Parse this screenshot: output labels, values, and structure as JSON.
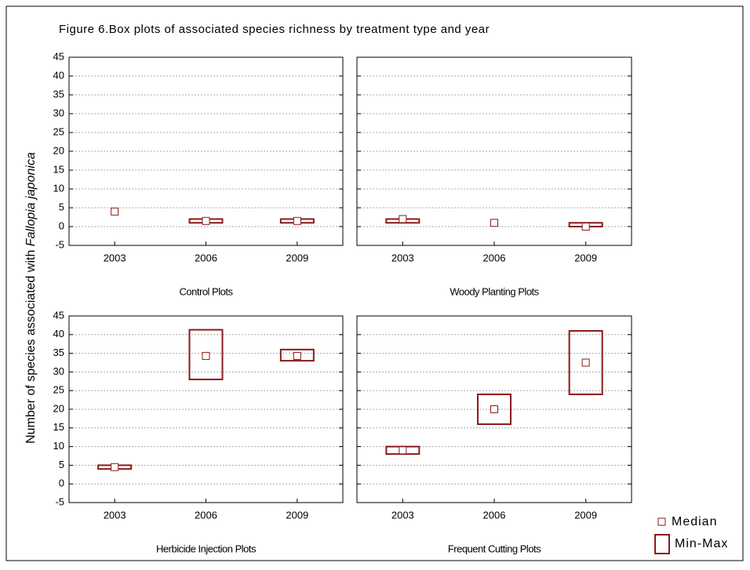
{
  "chart_data": {
    "type": "box",
    "title": "Figure 6.Box plots of associated species richness by treatment type and year",
    "y_label": "Number of species associated with",
    "y_label_species": "Fallopia japonica",
    "ylim": [
      -5,
      45
    ],
    "yticks": [
      -5,
      0,
      5,
      10,
      15,
      20,
      25,
      30,
      35,
      40,
      45
    ],
    "grid": true,
    "color": "#8b1a1a",
    "legend": {
      "median": "Median",
      "range": "Min-Max"
    },
    "panels": [
      {
        "label": "Control Plots",
        "categories": [
          "2003",
          "2006",
          "2009"
        ],
        "median": [
          4,
          1.5,
          1.5
        ],
        "min": [
          4,
          1,
          1
        ],
        "max": [
          4,
          2,
          2
        ]
      },
      {
        "label": "Woody Planting Plots",
        "categories": [
          "2003",
          "2006",
          "2009"
        ],
        "median": [
          2,
          1,
          0
        ],
        "min": [
          1,
          1,
          0
        ],
        "max": [
          2,
          1,
          1
        ]
      },
      {
        "label": "Herbicide Injection Plots",
        "categories": [
          "2003",
          "2006",
          "2009"
        ],
        "median": [
          4.5,
          34.3,
          34.3
        ],
        "min": [
          4,
          28,
          33
        ],
        "max": [
          5,
          41.3,
          36
        ]
      },
      {
        "label": "Frequent Cutting Plots",
        "categories": [
          "2003",
          "2006",
          "2009"
        ],
        "median": [
          9,
          20,
          32.5
        ],
        "min": [
          8,
          16,
          24
        ],
        "max": [
          10,
          24,
          41
        ]
      }
    ]
  }
}
